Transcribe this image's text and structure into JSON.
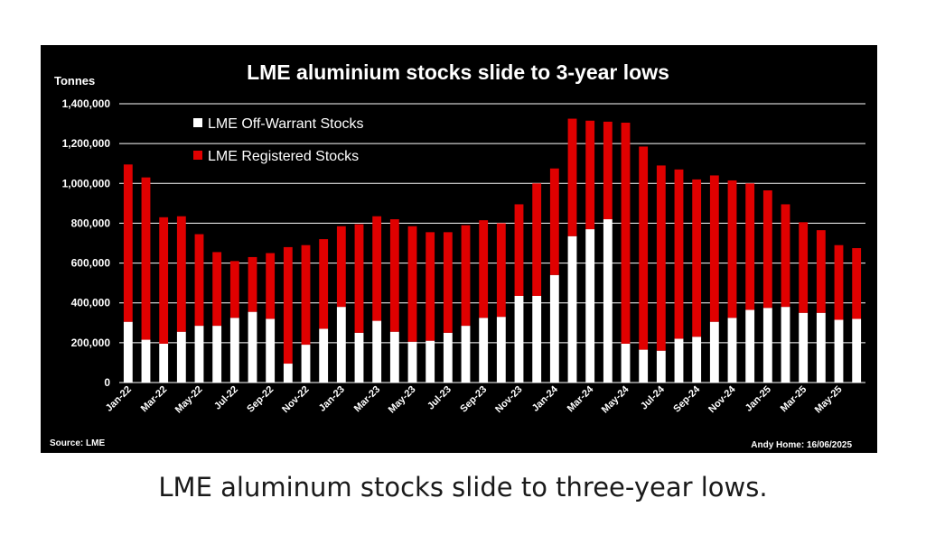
{
  "colors": {
    "off_warrant": "#ffffff",
    "registered": "#e00000",
    "background": "#000000",
    "grid": "#ffffff",
    "text": "#ffffff"
  },
  "chart_data": {
    "type": "bar",
    "stacked": true,
    "title": "LME aluminium stocks slide to 3-year lows",
    "ylabel": "Tonnes",
    "ylim": [
      0,
      1400000
    ],
    "yticks": [
      "0",
      "200,000",
      "400,000",
      "600,000",
      "800,000",
      "1,000,000",
      "1,200,000",
      "1,400,000"
    ],
    "ytick_values": [
      0,
      200000,
      400000,
      600000,
      800000,
      1000000,
      1200000,
      1400000
    ],
    "legend_position": "top-left",
    "categories": [
      "Jan-22",
      "Feb-22",
      "Mar-22",
      "Apr-22",
      "May-22",
      "Jun-22",
      "Jul-22",
      "Aug-22",
      "Sep-22",
      "Oct-22",
      "Nov-22",
      "Dec-22",
      "Jan-23",
      "Feb-23",
      "Mar-23",
      "Apr-23",
      "May-23",
      "Jun-23",
      "Jul-23",
      "Aug-23",
      "Sep-23",
      "Oct-23",
      "Nov-23",
      "Dec-23",
      "Jan-24",
      "Feb-24",
      "Mar-24",
      "Apr-24",
      "May-24",
      "Jun-24",
      "Jul-24",
      "Aug-24",
      "Sep-24",
      "Oct-24",
      "Nov-24",
      "Dec-24",
      "Jan-25",
      "Feb-25",
      "Mar-25",
      "Apr-25",
      "May-25",
      "Jun-25"
    ],
    "xtick_labels": [
      "Jan-22",
      "Mar-22",
      "May-22",
      "Jul-22",
      "Sep-22",
      "Nov-22",
      "Jan-23",
      "Mar-23",
      "May-23",
      "Jul-23",
      "Sep-23",
      "Nov-23",
      "Jan-24",
      "Mar-24",
      "May-24",
      "Jul-24",
      "Sep-24",
      "Nov-24",
      "Jan-25",
      "Mar-25",
      "May-25"
    ],
    "series": [
      {
        "name": "LME Off-Warrant Stocks",
        "color": "#ffffff",
        "values": [
          305000,
          215000,
          195000,
          255000,
          285000,
          285000,
          325000,
          355000,
          320000,
          95000,
          190000,
          270000,
          380000,
          250000,
          310000,
          255000,
          205000,
          210000,
          250000,
          285000,
          325000,
          330000,
          435000,
          435000,
          540000,
          735000,
          770000,
          820000,
          195000,
          165000,
          160000,
          220000,
          230000,
          305000,
          325000,
          365000,
          375000,
          380000,
          350000,
          350000,
          315000,
          320000
        ]
      },
      {
        "name": "LME Registered Stocks",
        "color": "#e00000",
        "values": [
          790000,
          815000,
          635000,
          580000,
          460000,
          370000,
          285000,
          275000,
          330000,
          585000,
          500000,
          450000,
          405000,
          545000,
          525000,
          565000,
          580000,
          545000,
          505000,
          505000,
          490000,
          470000,
          460000,
          565000,
          535000,
          590000,
          545000,
          490000,
          1110000,
          1020000,
          930000,
          850000,
          790000,
          735000,
          690000,
          635000,
          590000,
          515000,
          455000,
          415000,
          375000,
          355000
        ]
      }
    ],
    "source": "Source: LME",
    "credit": "Andy Home: 16/06/2025"
  },
  "caption": "LME aluminum stocks slide to three-year lows."
}
